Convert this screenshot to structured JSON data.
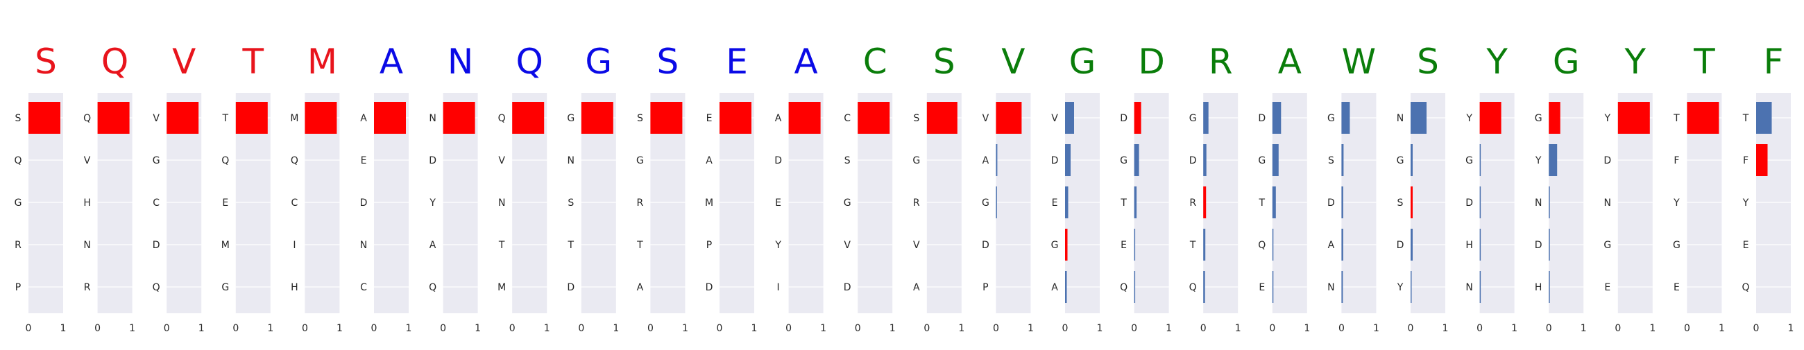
{
  "chart_data": {
    "type": "bar",
    "orientation": "horizontal",
    "xlim": [
      0,
      1
    ],
    "x_ticks": [
      "0",
      "1"
    ],
    "grid": true,
    "colors": {
      "highlight": "#ff0000",
      "other": "#4c72b0",
      "panel_background": "#eaeaf2",
      "grid": "#ffffff"
    },
    "title_colors": {
      "red": "#e8141c",
      "blue": "#0a0ae6",
      "green": "#0a7d0a"
    },
    "panels": [
      {
        "title": "S",
        "title_color": "red",
        "labels": [
          "S",
          "Q",
          "G",
          "R",
          "P"
        ],
        "values": [
          0.92,
          0,
          0,
          0,
          0
        ],
        "highlight": [
          true,
          false,
          false,
          false,
          false
        ]
      },
      {
        "title": "Q",
        "title_color": "red",
        "labels": [
          "Q",
          "V",
          "H",
          "N",
          "R"
        ],
        "values": [
          0.92,
          0,
          0,
          0,
          0
        ],
        "highlight": [
          true,
          false,
          false,
          false,
          false
        ]
      },
      {
        "title": "V",
        "title_color": "red",
        "labels": [
          "V",
          "G",
          "C",
          "D",
          "Q"
        ],
        "values": [
          0.92,
          0,
          0,
          0,
          0
        ],
        "highlight": [
          true,
          false,
          false,
          false,
          false
        ]
      },
      {
        "title": "T",
        "title_color": "red",
        "labels": [
          "T",
          "Q",
          "E",
          "M",
          "G"
        ],
        "values": [
          0.92,
          0,
          0,
          0,
          0
        ],
        "highlight": [
          true,
          false,
          false,
          false,
          false
        ]
      },
      {
        "title": "M",
        "title_color": "red",
        "labels": [
          "M",
          "Q",
          "C",
          "I",
          "H"
        ],
        "values": [
          0.92,
          0,
          0,
          0,
          0
        ],
        "highlight": [
          true,
          false,
          false,
          false,
          false
        ]
      },
      {
        "title": "A",
        "title_color": "blue",
        "labels": [
          "A",
          "E",
          "D",
          "N",
          "C"
        ],
        "values": [
          0.92,
          0,
          0,
          0,
          0
        ],
        "highlight": [
          true,
          false,
          false,
          false,
          false
        ]
      },
      {
        "title": "N",
        "title_color": "blue",
        "labels": [
          "N",
          "D",
          "Y",
          "A",
          "Q"
        ],
        "values": [
          0.92,
          0,
          0,
          0,
          0
        ],
        "highlight": [
          true,
          false,
          false,
          false,
          false
        ]
      },
      {
        "title": "Q",
        "title_color": "blue",
        "labels": [
          "Q",
          "V",
          "N",
          "T",
          "M"
        ],
        "values": [
          0.92,
          0,
          0,
          0,
          0
        ],
        "highlight": [
          true,
          false,
          false,
          false,
          false
        ]
      },
      {
        "title": "G",
        "title_color": "blue",
        "labels": [
          "G",
          "N",
          "S",
          "T",
          "D"
        ],
        "values": [
          0.92,
          0,
          0,
          0,
          0
        ],
        "highlight": [
          true,
          false,
          false,
          false,
          false
        ]
      },
      {
        "title": "S",
        "title_color": "blue",
        "labels": [
          "S",
          "G",
          "R",
          "T",
          "A"
        ],
        "values": [
          0.92,
          0,
          0,
          0,
          0
        ],
        "highlight": [
          true,
          false,
          false,
          false,
          false
        ]
      },
      {
        "title": "E",
        "title_color": "blue",
        "labels": [
          "E",
          "A",
          "M",
          "P",
          "D"
        ],
        "values": [
          0.92,
          0,
          0,
          0,
          0
        ],
        "highlight": [
          true,
          false,
          false,
          false,
          false
        ]
      },
      {
        "title": "A",
        "title_color": "blue",
        "labels": [
          "A",
          "D",
          "E",
          "Y",
          "I"
        ],
        "values": [
          0.92,
          0,
          0,
          0,
          0
        ],
        "highlight": [
          true,
          false,
          false,
          false,
          false
        ]
      },
      {
        "title": "C",
        "title_color": "green",
        "labels": [
          "C",
          "S",
          "G",
          "V",
          "D"
        ],
        "values": [
          0.92,
          0,
          0,
          0,
          0
        ],
        "highlight": [
          true,
          false,
          false,
          false,
          false
        ]
      },
      {
        "title": "S",
        "title_color": "green",
        "labels": [
          "S",
          "G",
          "R",
          "V",
          "A"
        ],
        "values": [
          0.88,
          0,
          0,
          0,
          0
        ],
        "highlight": [
          true,
          false,
          false,
          false,
          false
        ]
      },
      {
        "title": "V",
        "title_color": "green",
        "labels": [
          "V",
          "A",
          "G",
          "D",
          "P"
        ],
        "values": [
          0.74,
          0.04,
          0.01,
          0,
          0
        ],
        "highlight": [
          true,
          false,
          false,
          false,
          false
        ]
      },
      {
        "title": "G",
        "title_color": "green",
        "labels": [
          "V",
          "D",
          "E",
          "G",
          "A"
        ],
        "values": [
          0.26,
          0.16,
          0.09,
          0.07,
          0.05
        ],
        "highlight": [
          false,
          false,
          false,
          true,
          false
        ]
      },
      {
        "title": "D",
        "title_color": "green",
        "labels": [
          "D",
          "G",
          "T",
          "E",
          "Q"
        ],
        "values": [
          0.2,
          0.14,
          0.07,
          0.03,
          0.02
        ],
        "highlight": [
          true,
          false,
          false,
          false,
          false
        ]
      },
      {
        "title": "R",
        "title_color": "green",
        "labels": [
          "G",
          "D",
          "R",
          "T",
          "Q"
        ],
        "values": [
          0.15,
          0.09,
          0.08,
          0.06,
          0.05
        ],
        "highlight": [
          false,
          false,
          true,
          false,
          false
        ]
      },
      {
        "title": "A",
        "title_color": "green",
        "labels": [
          "D",
          "G",
          "T",
          "Q",
          "E"
        ],
        "values": [
          0.25,
          0.18,
          0.1,
          0.02,
          0.01
        ],
        "highlight": [
          false,
          false,
          false,
          false,
          false
        ]
      },
      {
        "title": "W",
        "title_color": "green",
        "labels": [
          "G",
          "S",
          "D",
          "A",
          "N"
        ],
        "values": [
          0.24,
          0.06,
          0.05,
          0.05,
          0.04
        ],
        "highlight": [
          false,
          false,
          false,
          false,
          false
        ]
      },
      {
        "title": "S",
        "title_color": "green",
        "labels": [
          "N",
          "G",
          "S",
          "D",
          "Y"
        ],
        "values": [
          0.46,
          0.06,
          0.06,
          0.06,
          0.03
        ],
        "highlight": [
          false,
          false,
          true,
          false,
          false
        ]
      },
      {
        "title": "Y",
        "title_color": "green",
        "labels": [
          "Y",
          "G",
          "D",
          "H",
          "N"
        ],
        "values": [
          0.62,
          0.01,
          0.01,
          0.01,
          0.01
        ],
        "highlight": [
          true,
          false,
          false,
          false,
          false
        ]
      },
      {
        "title": "G",
        "title_color": "green",
        "labels": [
          "G",
          "Y",
          "N",
          "D",
          "H"
        ],
        "values": [
          0.33,
          0.24,
          0.03,
          0.02,
          0.01
        ],
        "highlight": [
          true,
          false,
          false,
          false,
          false
        ]
      },
      {
        "title": "Y",
        "title_color": "green",
        "labels": [
          "Y",
          "D",
          "N",
          "G",
          "E"
        ],
        "values": [
          0.92,
          0,
          0,
          0,
          0
        ],
        "highlight": [
          true,
          false,
          false,
          false,
          false
        ]
      },
      {
        "title": "T",
        "title_color": "green",
        "labels": [
          "T",
          "F",
          "Y",
          "G",
          "E"
        ],
        "values": [
          0.92,
          0,
          0,
          0,
          0
        ],
        "highlight": [
          true,
          false,
          false,
          false,
          false
        ]
      },
      {
        "title": "F",
        "title_color": "green",
        "labels": [
          "T",
          "F",
          "Y",
          "E",
          "Q"
        ],
        "values": [
          0.45,
          0.33,
          0,
          0,
          0
        ],
        "highlight": [
          false,
          true,
          false,
          false,
          false
        ]
      }
    ]
  }
}
